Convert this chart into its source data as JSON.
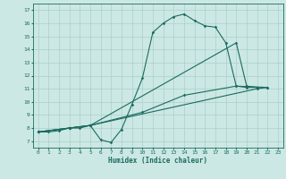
{
  "xlabel": "Humidex (Indice chaleur)",
  "bg_color": "#cce8e4",
  "grid_color": "#aacfcb",
  "line_color": "#1a6b60",
  "xlim": [
    -0.5,
    23.5
  ],
  "ylim": [
    6.5,
    17.5
  ],
  "xticks": [
    0,
    1,
    2,
    3,
    4,
    5,
    6,
    7,
    8,
    9,
    10,
    11,
    12,
    13,
    14,
    15,
    16,
    17,
    18,
    19,
    20,
    21,
    22,
    23
  ],
  "yticks": [
    7,
    8,
    9,
    10,
    11,
    12,
    13,
    14,
    15,
    16,
    17
  ],
  "series": [
    [
      [
        0,
        7.7
      ],
      [
        1,
        7.7
      ],
      [
        2,
        7.8
      ],
      [
        3,
        8.0
      ],
      [
        4,
        8.0
      ],
      [
        5,
        8.2
      ],
      [
        6,
        7.1
      ],
      [
        7,
        6.9
      ],
      [
        8,
        7.9
      ],
      [
        9,
        9.8
      ],
      [
        10,
        11.8
      ],
      [
        11,
        15.3
      ],
      [
        12,
        16.0
      ],
      [
        13,
        16.5
      ],
      [
        14,
        16.7
      ],
      [
        15,
        16.2
      ],
      [
        16,
        15.8
      ],
      [
        17,
        15.7
      ],
      [
        18,
        14.5
      ],
      [
        19,
        11.2
      ],
      [
        20,
        11.1
      ],
      [
        21,
        11.1
      ]
    ],
    [
      [
        0,
        7.7
      ],
      [
        3,
        8.0
      ],
      [
        5,
        8.2
      ],
      [
        21,
        11.0
      ],
      [
        22,
        11.1
      ]
    ],
    [
      [
        0,
        7.7
      ],
      [
        3,
        8.0
      ],
      [
        5,
        8.2
      ],
      [
        10,
        9.2
      ],
      [
        14,
        10.5
      ],
      [
        19,
        11.2
      ],
      [
        22,
        11.1
      ]
    ],
    [
      [
        0,
        7.7
      ],
      [
        3,
        8.0
      ],
      [
        5,
        8.2
      ],
      [
        19,
        14.5
      ],
      [
        20,
        11.2
      ],
      [
        21,
        11.1
      ]
    ]
  ]
}
